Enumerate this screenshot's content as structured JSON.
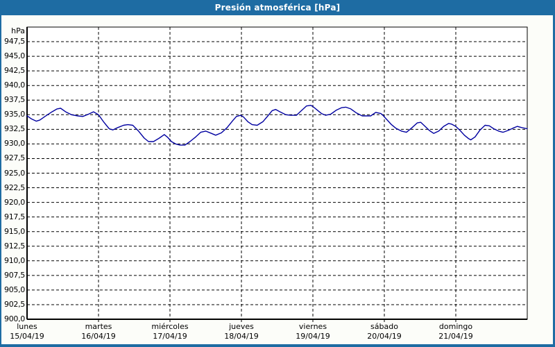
{
  "window": {
    "title": "Presión atmosférica [hPa]"
  },
  "colors": {
    "titlebar_bg": "#1e6ca3",
    "frame": "#1e6ca3",
    "title_text": "#ffffff",
    "page_bg": "#fcfdf9",
    "plot_bg": "#ffffff",
    "grid": "#000000",
    "line": "#0000a0"
  },
  "chart_data": {
    "type": "line",
    "title": "Presión atmosférica [hPa]",
    "unit_label": "hPa",
    "ylim": [
      900,
      950
    ],
    "grid": "dashed",
    "y_tick_step": 2.5,
    "y_ticks": [
      "947,5",
      "945,0",
      "942,5",
      "940,0",
      "937,5",
      "935,0",
      "932,5",
      "930,0",
      "927,5",
      "925,0",
      "922,5",
      "920,0",
      "917,5",
      "915,0",
      "912,5",
      "910,0",
      "907,5",
      "905,0",
      "902,5",
      "900,0"
    ],
    "x_days": [
      {
        "name": "lunes",
        "date": "15/04/19"
      },
      {
        "name": "martes",
        "date": "16/04/19"
      },
      {
        "name": "miércoles",
        "date": "17/04/19"
      },
      {
        "name": "jueves",
        "date": "18/04/19"
      },
      {
        "name": "viernes",
        "date": "19/04/19"
      },
      {
        "name": "sábado",
        "date": "20/04/19"
      },
      {
        "name": "domingo",
        "date": "21/04/19"
      }
    ],
    "series": [
      {
        "name": "Presión atmosférica",
        "color": "#0000a0",
        "x_day_fraction": [
          0.0,
          0.06,
          0.13,
          0.18,
          0.25,
          0.35,
          0.42,
          0.47,
          0.54,
          0.62,
          0.71,
          0.78,
          0.86,
          0.93,
          1.0,
          1.07,
          1.15,
          1.2,
          1.27,
          1.35,
          1.41,
          1.48,
          1.56,
          1.64,
          1.7,
          1.77,
          1.85,
          1.92,
          1.97,
          2.02,
          2.08,
          2.14,
          2.21,
          2.28,
          2.36,
          2.43,
          2.5,
          2.58,
          2.64,
          2.72,
          2.8,
          2.88,
          2.93,
          2.99,
          3.03,
          3.09,
          3.15,
          3.22,
          3.3,
          3.37,
          3.43,
          3.48,
          3.54,
          3.62,
          3.69,
          3.77,
          3.84,
          3.91,
          3.97,
          4.0,
          4.06,
          4.12,
          4.18,
          4.25,
          4.33,
          4.4,
          4.46,
          4.53,
          4.61,
          4.69,
          4.75,
          4.81,
          4.88,
          4.95,
          4.98,
          5.04,
          5.1,
          5.16,
          5.24,
          5.31,
          5.38,
          5.46,
          5.51,
          5.58,
          5.63,
          5.69,
          5.76,
          5.83,
          5.9,
          5.94,
          6.0,
          6.06,
          6.12,
          6.18,
          6.21,
          6.27,
          6.34,
          6.41,
          6.47,
          6.53,
          6.6,
          6.66,
          6.73,
          6.8,
          6.86,
          6.92,
          7.0
        ],
        "values": [
          934.8,
          934.3,
          933.9,
          934.1,
          934.7,
          935.5,
          936.0,
          936.1,
          935.5,
          935.0,
          934.8,
          934.7,
          935.1,
          935.5,
          935.0,
          933.8,
          932.6,
          932.4,
          932.8,
          933.2,
          933.3,
          933.2,
          932.2,
          931.0,
          930.4,
          930.4,
          931.0,
          931.6,
          931.1,
          930.4,
          930.0,
          929.8,
          929.8,
          930.4,
          931.2,
          932.0,
          932.2,
          931.8,
          931.5,
          931.9,
          932.8,
          934.0,
          934.7,
          934.9,
          934.6,
          933.8,
          933.3,
          933.2,
          933.8,
          934.8,
          935.7,
          935.9,
          935.5,
          935.0,
          934.9,
          934.9,
          935.7,
          936.5,
          936.6,
          936.4,
          935.8,
          935.2,
          934.9,
          935.1,
          935.8,
          936.2,
          936.3,
          936.0,
          935.3,
          934.8,
          934.8,
          934.8,
          935.4,
          935.2,
          934.9,
          934.1,
          933.3,
          932.7,
          932.2,
          932.0,
          932.7,
          933.6,
          933.7,
          932.9,
          932.3,
          931.8,
          932.2,
          933.0,
          933.5,
          933.4,
          933.0,
          932.3,
          931.5,
          930.9,
          930.7,
          931.2,
          932.4,
          933.2,
          933.1,
          932.6,
          932.2,
          932.0,
          932.3,
          932.7,
          933.0,
          932.8,
          932.6
        ]
      }
    ]
  }
}
